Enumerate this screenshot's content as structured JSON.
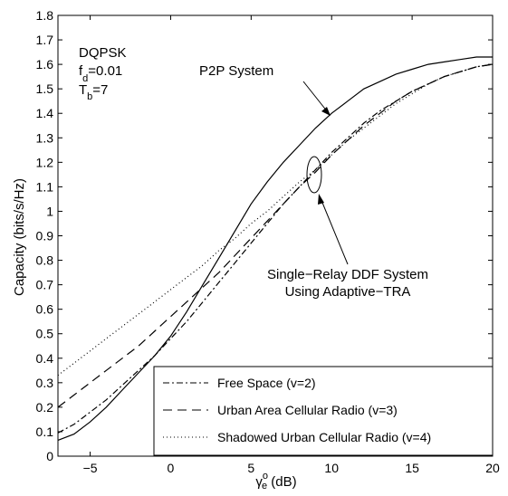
{
  "chart_data": {
    "type": "line",
    "xlabel_main": "γ",
    "xlabel_sup": "o",
    "xlabel_sub": "e",
    "xlabel_unit": " (dB)",
    "ylabel": "Capacity (bits/s/Hz)",
    "xlim": [
      -7,
      20
    ],
    "ylim": [
      0,
      1.8
    ],
    "xticks": [
      -5,
      0,
      5,
      10,
      15,
      20
    ],
    "yticks": [
      0,
      0.1,
      0.2,
      0.3,
      0.4,
      0.5,
      0.6,
      0.7,
      0.8,
      0.9,
      1,
      1.1,
      1.2,
      1.3,
      1.4,
      1.5,
      1.6,
      1.7,
      1.8
    ],
    "grid": false,
    "legend_position": "bottom-right",
    "params": {
      "line1": "DQPSK",
      "line2_main": "f",
      "line2_sub": "d",
      "line2_rest": "=0.01",
      "line3_main": "T",
      "line3_sub": "b",
      "line3_rest": "=7"
    },
    "annotations": {
      "p2p": "P2P System",
      "ddf_line1": "Single−Relay DDF System",
      "ddf_line2": "Using Adaptive−TRA"
    },
    "series": [
      {
        "id": "p2p",
        "style": "solid",
        "points": [
          [
            -7,
            0.065
          ],
          [
            -6,
            0.09
          ],
          [
            -5,
            0.14
          ],
          [
            -4,
            0.2
          ],
          [
            -3,
            0.27
          ],
          [
            -2,
            0.34
          ],
          [
            -1,
            0.41
          ],
          [
            0,
            0.49
          ],
          [
            1,
            0.59
          ],
          [
            2,
            0.7
          ],
          [
            3,
            0.81
          ],
          [
            4,
            0.92
          ],
          [
            5,
            1.03
          ],
          [
            6,
            1.12
          ],
          [
            7,
            1.2
          ],
          [
            8,
            1.27
          ],
          [
            9,
            1.34
          ],
          [
            10,
            1.4
          ],
          [
            11,
            1.45
          ],
          [
            12,
            1.5
          ],
          [
            13,
            1.53
          ],
          [
            14,
            1.56
          ],
          [
            15,
            1.58
          ],
          [
            16,
            1.6
          ],
          [
            17,
            1.61
          ],
          [
            18,
            1.62
          ],
          [
            19,
            1.63
          ],
          [
            20,
            1.63
          ]
        ]
      },
      {
        "id": "free-space",
        "name": "Free Space (v=2)",
        "style": "dashdot",
        "points": [
          [
            -7,
            0.095
          ],
          [
            -6,
            0.13
          ],
          [
            -5,
            0.18
          ],
          [
            -4,
            0.23
          ],
          [
            -3,
            0.29
          ],
          [
            -2,
            0.35
          ],
          [
            -1,
            0.41
          ],
          [
            0,
            0.48
          ],
          [
            1,
            0.55
          ],
          [
            2,
            0.63
          ],
          [
            3,
            0.71
          ],
          [
            4,
            0.79
          ],
          [
            5,
            0.87
          ],
          [
            6,
            0.95
          ],
          [
            7,
            1.03
          ],
          [
            8,
            1.1
          ],
          [
            9,
            1.17
          ],
          [
            10,
            1.24
          ],
          [
            11,
            1.3
          ],
          [
            12,
            1.36
          ],
          [
            13,
            1.41
          ],
          [
            14,
            1.45
          ],
          [
            15,
            1.49
          ],
          [
            16,
            1.52
          ],
          [
            17,
            1.55
          ],
          [
            18,
            1.57
          ],
          [
            19,
            1.59
          ],
          [
            20,
            1.6
          ]
        ]
      },
      {
        "id": "urban",
        "name": "Urban Area Cellular Radio (v=3)",
        "style": "dashed",
        "points": [
          [
            -7,
            0.2
          ],
          [
            -6,
            0.25
          ],
          [
            -5,
            0.3
          ],
          [
            -4,
            0.35
          ],
          [
            -3,
            0.4
          ],
          [
            -2,
            0.45
          ],
          [
            -1,
            0.51
          ],
          [
            0,
            0.57
          ],
          [
            1,
            0.63
          ],
          [
            2,
            0.69
          ],
          [
            3,
            0.75
          ],
          [
            4,
            0.82
          ],
          [
            5,
            0.89
          ],
          [
            6,
            0.96
          ],
          [
            7,
            1.03
          ],
          [
            8,
            1.1
          ],
          [
            9,
            1.16
          ],
          [
            10,
            1.23
          ],
          [
            11,
            1.29
          ],
          [
            12,
            1.35
          ],
          [
            13,
            1.4
          ],
          [
            14,
            1.45
          ],
          [
            15,
            1.49
          ],
          [
            16,
            1.52
          ],
          [
            17,
            1.55
          ],
          [
            18,
            1.57
          ],
          [
            19,
            1.59
          ],
          [
            20,
            1.6
          ]
        ]
      },
      {
        "id": "shadowed",
        "name": "Shadowed Urban Cellular Radio (v=4)",
        "style": "dotted",
        "points": [
          [
            -7,
            0.33
          ],
          [
            -6,
            0.38
          ],
          [
            -5,
            0.43
          ],
          [
            -4,
            0.48
          ],
          [
            -3,
            0.53
          ],
          [
            -2,
            0.58
          ],
          [
            -1,
            0.63
          ],
          [
            0,
            0.68
          ],
          [
            1,
            0.73
          ],
          [
            2,
            0.78
          ],
          [
            3,
            0.84
          ],
          [
            4,
            0.89
          ],
          [
            5,
            0.95
          ],
          [
            6,
            1.0
          ],
          [
            7,
            1.06
          ],
          [
            8,
            1.12
          ],
          [
            9,
            1.17
          ],
          [
            10,
            1.23
          ],
          [
            11,
            1.29
          ],
          [
            12,
            1.34
          ],
          [
            13,
            1.39
          ],
          [
            14,
            1.44
          ],
          [
            15,
            1.48
          ],
          [
            16,
            1.52
          ],
          [
            17,
            1.55
          ],
          [
            18,
            1.57
          ],
          [
            19,
            1.59
          ],
          [
            20,
            1.6
          ]
        ]
      }
    ]
  }
}
